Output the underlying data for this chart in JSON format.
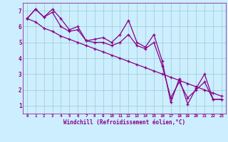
{
  "xlabel": "Windchill (Refroidissement éolien,°C)",
  "bg_color": "#cceeff",
  "grid_color": "#99cccc",
  "line_color": "#880088",
  "xlim": [
    -0.5,
    23.5
  ],
  "ylim": [
    0.5,
    7.5
  ],
  "xticks": [
    0,
    1,
    2,
    3,
    4,
    5,
    6,
    7,
    8,
    9,
    10,
    11,
    12,
    13,
    14,
    15,
    16,
    17,
    18,
    19,
    20,
    21,
    22,
    23
  ],
  "yticks": [
    1,
    2,
    3,
    4,
    5,
    6,
    7
  ],
  "line1_x": [
    0,
    1,
    2,
    3,
    4,
    5,
    6,
    7,
    8,
    9,
    10,
    11,
    12,
    13,
    14,
    15,
    16,
    17,
    18,
    19,
    20,
    21,
    22,
    23
  ],
  "line1_y": [
    6.5,
    7.1,
    6.6,
    7.1,
    6.5,
    5.8,
    6.0,
    5.1,
    5.2,
    5.3,
    5.0,
    5.5,
    6.4,
    5.0,
    4.7,
    5.5,
    3.8,
    1.2,
    2.7,
    1.1,
    2.1,
    3.0,
    1.4,
    1.4
  ],
  "line2_x": [
    0,
    1,
    2,
    3,
    4,
    5,
    6,
    7,
    8,
    9,
    10,
    11,
    12,
    13,
    14,
    15,
    16,
    17,
    18,
    19,
    20,
    21,
    22,
    23
  ],
  "line2_y": [
    6.5,
    7.1,
    6.6,
    6.9,
    6.0,
    5.7,
    5.8,
    5.1,
    5.0,
    5.0,
    4.8,
    5.0,
    5.5,
    4.8,
    4.6,
    5.0,
    3.5,
    1.5,
    2.5,
    1.5,
    2.0,
    2.5,
    1.4,
    1.4
  ],
  "line3_x": [
    0,
    1,
    2,
    3,
    4,
    5,
    6,
    7,
    8,
    9,
    10,
    11,
    12,
    13,
    14,
    15,
    16,
    17,
    18,
    19,
    20,
    21,
    22,
    23
  ],
  "line3_y": [
    6.5,
    6.3,
    5.9,
    5.7,
    5.4,
    5.2,
    5.0,
    4.8,
    4.6,
    4.4,
    4.2,
    4.0,
    3.8,
    3.6,
    3.4,
    3.2,
    3.0,
    2.8,
    2.6,
    2.4,
    2.2,
    2.0,
    1.8,
    1.6
  ]
}
